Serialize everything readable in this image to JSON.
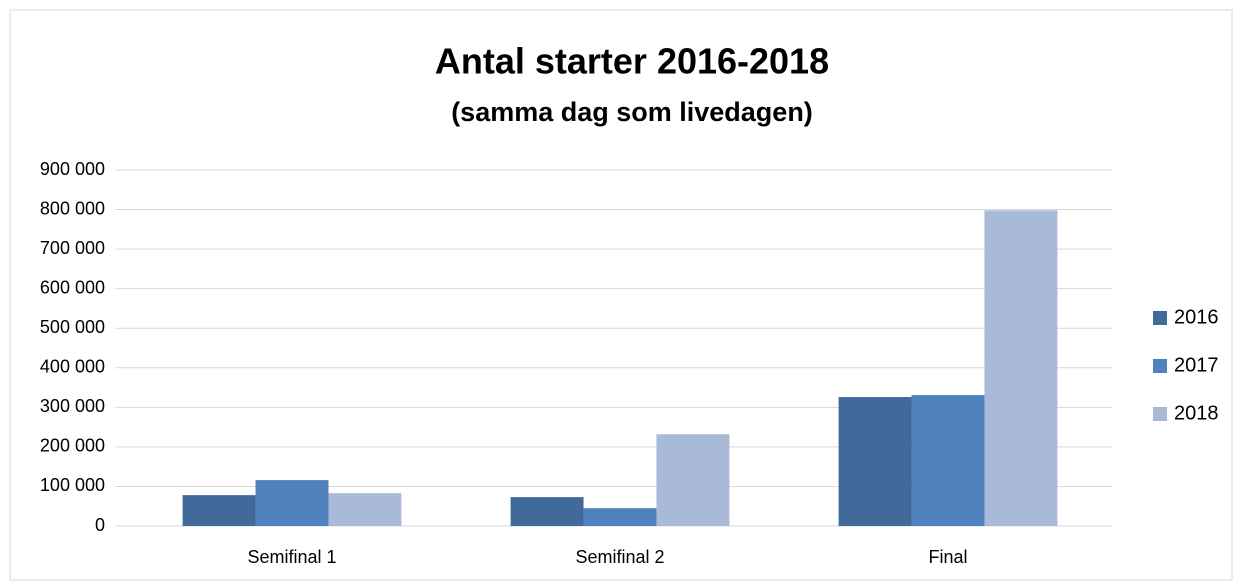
{
  "chart_data": {
    "type": "bar",
    "title": "Antal starter 2016-2018",
    "subtitle": "(samma dag som livedagen)",
    "categories": [
      "Semifinal 1",
      "Semifinal 2",
      "Final"
    ],
    "series": [
      {
        "name": "2016",
        "color": "#41699a",
        "values": [
          78000,
          73000,
          326000
        ]
      },
      {
        "name": "2017",
        "color": "#4f81bd",
        "values": [
          116000,
          45000,
          331000
        ]
      },
      {
        "name": "2018",
        "color": "#a9b9d8",
        "values": [
          83000,
          232000,
          798000
        ]
      }
    ],
    "ylim": [
      0,
      900000
    ],
    "yticks": [
      0,
      {
        "value": 100000,
        "label": "100 000"
      },
      {
        "value": 200000,
        "label": "200 000"
      },
      {
        "value": 300000,
        "label": "300 000"
      },
      {
        "value": 400000,
        "label": "400 000"
      },
      {
        "value": 500000,
        "label": "500 000"
      },
      {
        "value": 600000,
        "label": "600 000"
      },
      {
        "value": 700000,
        "label": "700 000"
      },
      {
        "value": 800000,
        "label": "800 000"
      },
      {
        "value": 900000,
        "label": "900 000"
      }
    ],
    "grid": true,
    "legend": "right"
  }
}
